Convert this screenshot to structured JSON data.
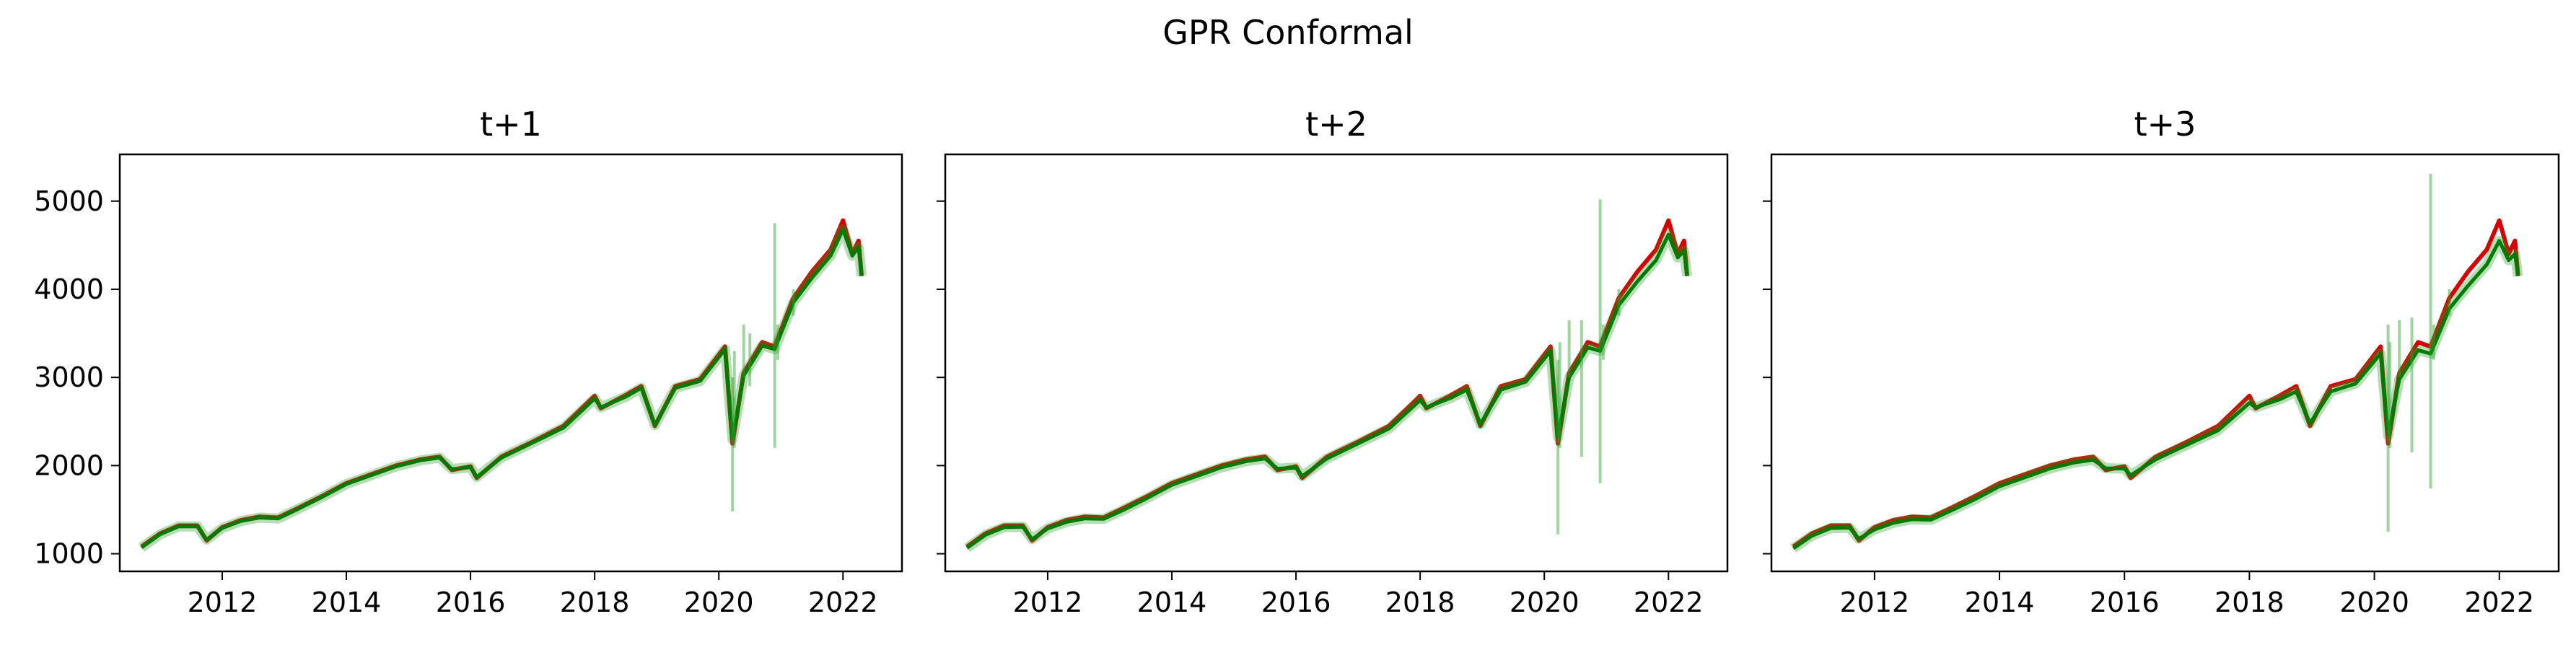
{
  "figure": {
    "title": "GPR Conformal"
  },
  "colors": {
    "actual": "#d40000",
    "prediction": "#007a00",
    "interval": "#2ca02c"
  },
  "chart_data": [
    {
      "type": "line",
      "title": "t+1",
      "xlabel": "",
      "ylabel": "",
      "xlim": [
        2010.35,
        2022.95
      ],
      "ylim": [
        800,
        5530
      ],
      "xticks": [
        "2012",
        "2014",
        "2016",
        "2018",
        "2020",
        "2022"
      ],
      "yticks": [
        "1000",
        "2000",
        "3000",
        "4000",
        "5000"
      ],
      "grid": false,
      "series": [
        {
          "role": "actual",
          "x": [
            2010.7,
            2011.0,
            2011.3,
            2011.6,
            2011.75,
            2012.0,
            2012.3,
            2012.6,
            2012.9,
            2013.2,
            2013.6,
            2014.0,
            2014.4,
            2014.8,
            2015.2,
            2015.5,
            2015.7,
            2016.0,
            2016.1,
            2016.5,
            2017.0,
            2017.5,
            2018.0,
            2018.1,
            2018.5,
            2018.75,
            2018.97,
            2019.3,
            2019.7,
            2020.1,
            2020.22,
            2020.4,
            2020.7,
            2020.9,
            2021.2,
            2021.5,
            2021.8,
            2022.0,
            2022.15,
            2022.25,
            2022.3
          ],
          "y": [
            1080,
            1230,
            1320,
            1320,
            1150,
            1300,
            1380,
            1420,
            1410,
            1510,
            1650,
            1800,
            1900,
            2000,
            2070,
            2100,
            1950,
            1990,
            1860,
            2100,
            2270,
            2450,
            2790,
            2650,
            2800,
            2900,
            2450,
            2900,
            2980,
            3350,
            2250,
            3050,
            3400,
            3350,
            3900,
            4200,
            4450,
            4780,
            4400,
            4550,
            4150
          ]
        },
        {
          "role": "prediction",
          "x": [
            2010.7,
            2011.0,
            2011.3,
            2011.6,
            2011.75,
            2012.0,
            2012.3,
            2012.6,
            2012.9,
            2013.2,
            2013.6,
            2014.0,
            2014.4,
            2014.8,
            2015.2,
            2015.5,
            2015.7,
            2016.0,
            2016.1,
            2016.5,
            2017.0,
            2017.5,
            2018.0,
            2018.1,
            2018.5,
            2018.75,
            2018.97,
            2019.3,
            2019.7,
            2020.1,
            2020.22,
            2020.4,
            2020.7,
            2020.9,
            2021.2,
            2021.5,
            2021.8,
            2022.0,
            2022.15,
            2022.25,
            2022.3
          ],
          "y": [
            1070,
            1220,
            1310,
            1310,
            1160,
            1290,
            1370,
            1410,
            1400,
            1500,
            1640,
            1790,
            1890,
            1990,
            2060,
            2090,
            1960,
            1980,
            1870,
            2090,
            2260,
            2430,
            2760,
            2660,
            2780,
            2880,
            2460,
            2880,
            2960,
            3320,
            2300,
            3020,
            3360,
            3320,
            3850,
            4130,
            4380,
            4680,
            4380,
            4480,
            4150
          ]
        },
        {
          "role": "interval",
          "x": [
            2020.22,
            2020.25,
            2020.4,
            2020.5,
            2020.9,
            2020.95,
            2021.2
          ],
          "lower": [
            1480,
            2200,
            3000,
            2900,
            2200,
            3200,
            3700
          ],
          "upper": [
            3000,
            3300,
            3600,
            3500,
            4750,
            3600,
            4000
          ]
        }
      ]
    },
    {
      "type": "line",
      "title": "t+2",
      "xlabel": "",
      "ylabel": "",
      "xlim": [
        2010.35,
        2022.95
      ],
      "ylim": [
        800,
        5530
      ],
      "xticks": [
        "2012",
        "2014",
        "2016",
        "2018",
        "2020",
        "2022"
      ],
      "yticks": [],
      "grid": false,
      "series": [
        {
          "role": "actual",
          "x": [
            2010.7,
            2011.0,
            2011.3,
            2011.6,
            2011.75,
            2012.0,
            2012.3,
            2012.6,
            2012.9,
            2013.2,
            2013.6,
            2014.0,
            2014.4,
            2014.8,
            2015.2,
            2015.5,
            2015.7,
            2016.0,
            2016.1,
            2016.5,
            2017.0,
            2017.5,
            2018.0,
            2018.1,
            2018.5,
            2018.75,
            2018.97,
            2019.3,
            2019.7,
            2020.1,
            2020.22,
            2020.4,
            2020.7,
            2020.9,
            2021.2,
            2021.5,
            2021.8,
            2022.0,
            2022.15,
            2022.25,
            2022.3
          ],
          "y": [
            1080,
            1230,
            1320,
            1320,
            1150,
            1300,
            1380,
            1420,
            1410,
            1510,
            1650,
            1800,
            1900,
            2000,
            2070,
            2100,
            1950,
            1990,
            1860,
            2100,
            2270,
            2450,
            2790,
            2650,
            2800,
            2900,
            2450,
            2900,
            2980,
            3350,
            2250,
            3050,
            3400,
            3350,
            3900,
            4200,
            4450,
            4780,
            4400,
            4550,
            4150
          ]
        },
        {
          "role": "prediction",
          "x": [
            2010.7,
            2011.0,
            2011.3,
            2011.6,
            2011.75,
            2012.0,
            2012.3,
            2012.6,
            2012.9,
            2013.2,
            2013.6,
            2014.0,
            2014.4,
            2014.8,
            2015.2,
            2015.5,
            2015.7,
            2016.0,
            2016.1,
            2016.5,
            2017.0,
            2017.5,
            2018.0,
            2018.1,
            2018.5,
            2018.75,
            2018.97,
            2019.3,
            2019.7,
            2020.1,
            2020.22,
            2020.4,
            2020.7,
            2020.9,
            2021.2,
            2021.5,
            2021.8,
            2022.0,
            2022.15,
            2022.25,
            2022.3
          ],
          "y": [
            1065,
            1215,
            1300,
            1305,
            1165,
            1285,
            1360,
            1400,
            1395,
            1490,
            1630,
            1780,
            1880,
            1980,
            2050,
            2080,
            1965,
            1975,
            1880,
            2080,
            2250,
            2420,
            2740,
            2660,
            2770,
            2860,
            2470,
            2860,
            2950,
            3300,
            2320,
            3000,
            3340,
            3300,
            3820,
            4090,
            4330,
            4620,
            4360,
            4440,
            4150
          ]
        },
        {
          "role": "interval",
          "x": [
            2020.22,
            2020.25,
            2020.4,
            2020.6,
            2020.9,
            2020.95,
            2021.2
          ],
          "lower": [
            1220,
            2200,
            3000,
            2100,
            1800,
            3200,
            3700
          ],
          "upper": [
            3200,
            3400,
            3650,
            3650,
            5020,
            3600,
            4000
          ]
        }
      ]
    },
    {
      "type": "line",
      "title": "t+3",
      "xlabel": "",
      "ylabel": "",
      "xlim": [
        2010.35,
        2022.95
      ],
      "ylim": [
        800,
        5530
      ],
      "xticks": [
        "2012",
        "2014",
        "2016",
        "2018",
        "2020",
        "2022"
      ],
      "yticks": [],
      "grid": false,
      "series": [
        {
          "role": "actual",
          "x": [
            2010.7,
            2011.0,
            2011.3,
            2011.6,
            2011.75,
            2012.0,
            2012.3,
            2012.6,
            2012.9,
            2013.2,
            2013.6,
            2014.0,
            2014.4,
            2014.8,
            2015.2,
            2015.5,
            2015.7,
            2016.0,
            2016.1,
            2016.5,
            2017.0,
            2017.5,
            2018.0,
            2018.1,
            2018.5,
            2018.75,
            2018.97,
            2019.3,
            2019.7,
            2020.1,
            2020.22,
            2020.4,
            2020.7,
            2020.9,
            2021.2,
            2021.5,
            2021.8,
            2022.0,
            2022.15,
            2022.25,
            2022.3
          ],
          "y": [
            1080,
            1230,
            1320,
            1320,
            1150,
            1300,
            1380,
            1420,
            1410,
            1510,
            1650,
            1800,
            1900,
            2000,
            2070,
            2100,
            1950,
            1990,
            1860,
            2100,
            2270,
            2450,
            2790,
            2650,
            2800,
            2900,
            2450,
            2900,
            2980,
            3350,
            2250,
            3050,
            3400,
            3350,
            3900,
            4200,
            4450,
            4780,
            4400,
            4550,
            4150
          ]
        },
        {
          "role": "prediction",
          "x": [
            2010.7,
            2011.0,
            2011.3,
            2011.6,
            2011.75,
            2012.0,
            2012.3,
            2012.6,
            2012.9,
            2013.2,
            2013.6,
            2014.0,
            2014.4,
            2014.8,
            2015.2,
            2015.5,
            2015.7,
            2016.0,
            2016.1,
            2016.5,
            2017.0,
            2017.5,
            2018.0,
            2018.1,
            2018.5,
            2018.75,
            2018.97,
            2019.3,
            2019.7,
            2020.1,
            2020.22,
            2020.4,
            2020.7,
            2020.9,
            2021.2,
            2021.5,
            2021.8,
            2022.0,
            2022.15,
            2022.25,
            2022.3
          ],
          "y": [
            1060,
            1205,
            1290,
            1295,
            1170,
            1275,
            1350,
            1390,
            1385,
            1480,
            1615,
            1765,
            1865,
            1965,
            2035,
            2065,
            1970,
            1965,
            1890,
            2070,
            2235,
            2400,
            2710,
            2660,
            2755,
            2840,
            2480,
            2840,
            2930,
            3270,
            2340,
            2980,
            3310,
            3270,
            3780,
            4040,
            4280,
            4550,
            4330,
            4400,
            4150
          ]
        },
        {
          "role": "interval",
          "x": [
            2020.22,
            2020.25,
            2020.4,
            2020.6,
            2020.9,
            2020.95,
            2021.2
          ],
          "lower": [
            1250,
            2200,
            3000,
            2150,
            1740,
            3200,
            3700
          ],
          "upper": [
            3600,
            3400,
            3650,
            3680,
            5310,
            3600,
            4000
          ]
        }
      ]
    }
  ]
}
